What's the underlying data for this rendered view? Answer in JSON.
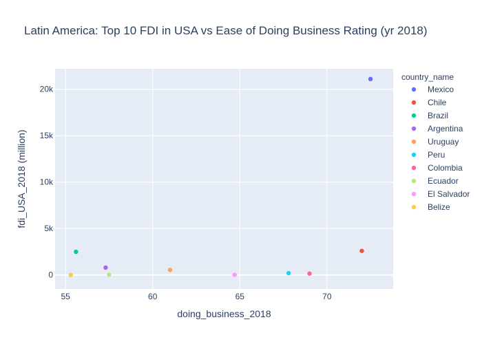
{
  "chart_data": {
    "type": "scatter",
    "title": "Latin America: Top 10 FDI in USA vs Ease of Doing Business Rating (yr 2018)",
    "xlabel": "doing_business_2018",
    "ylabel": "fdi_USA_2018 (million)",
    "xlim": [
      54.4,
      73.8
    ],
    "ylim": [
      -1500,
      22200
    ],
    "x_ticks": [
      55,
      60,
      65,
      70
    ],
    "x_tick_labels": [
      "55",
      "60",
      "65",
      "70"
    ],
    "y_ticks": [
      0,
      5000,
      10000,
      15000,
      20000
    ],
    "y_tick_labels": [
      "0",
      "5k",
      "10k",
      "15k",
      "20k"
    ],
    "grid": true,
    "legend_title": "country_name",
    "legend_position": "right",
    "series": [
      {
        "name": "Mexico",
        "color": "#636efa",
        "x": 72.5,
        "y": 21100
      },
      {
        "name": "Chile",
        "color": "#ef553b",
        "x": 72.0,
        "y": 2600
      },
      {
        "name": "Brazil",
        "color": "#00cc96",
        "x": 55.6,
        "y": 2500
      },
      {
        "name": "Argentina",
        "color": "#ab63fa",
        "x": 57.3,
        "y": 800
      },
      {
        "name": "Uruguay",
        "color": "#ffa15a",
        "x": 61.0,
        "y": 550
      },
      {
        "name": "Peru",
        "color": "#19d3f3",
        "x": 67.8,
        "y": 200
      },
      {
        "name": "Colombia",
        "color": "#ff6692",
        "x": 69.0,
        "y": 150
      },
      {
        "name": "Ecuador",
        "color": "#b6e880",
        "x": 57.5,
        "y": 30
      },
      {
        "name": "El Salvador",
        "color": "#ff97ff",
        "x": 64.7,
        "y": 20
      },
      {
        "name": "Belize",
        "color": "#fecb52",
        "x": 55.3,
        "y": 10
      }
    ]
  }
}
